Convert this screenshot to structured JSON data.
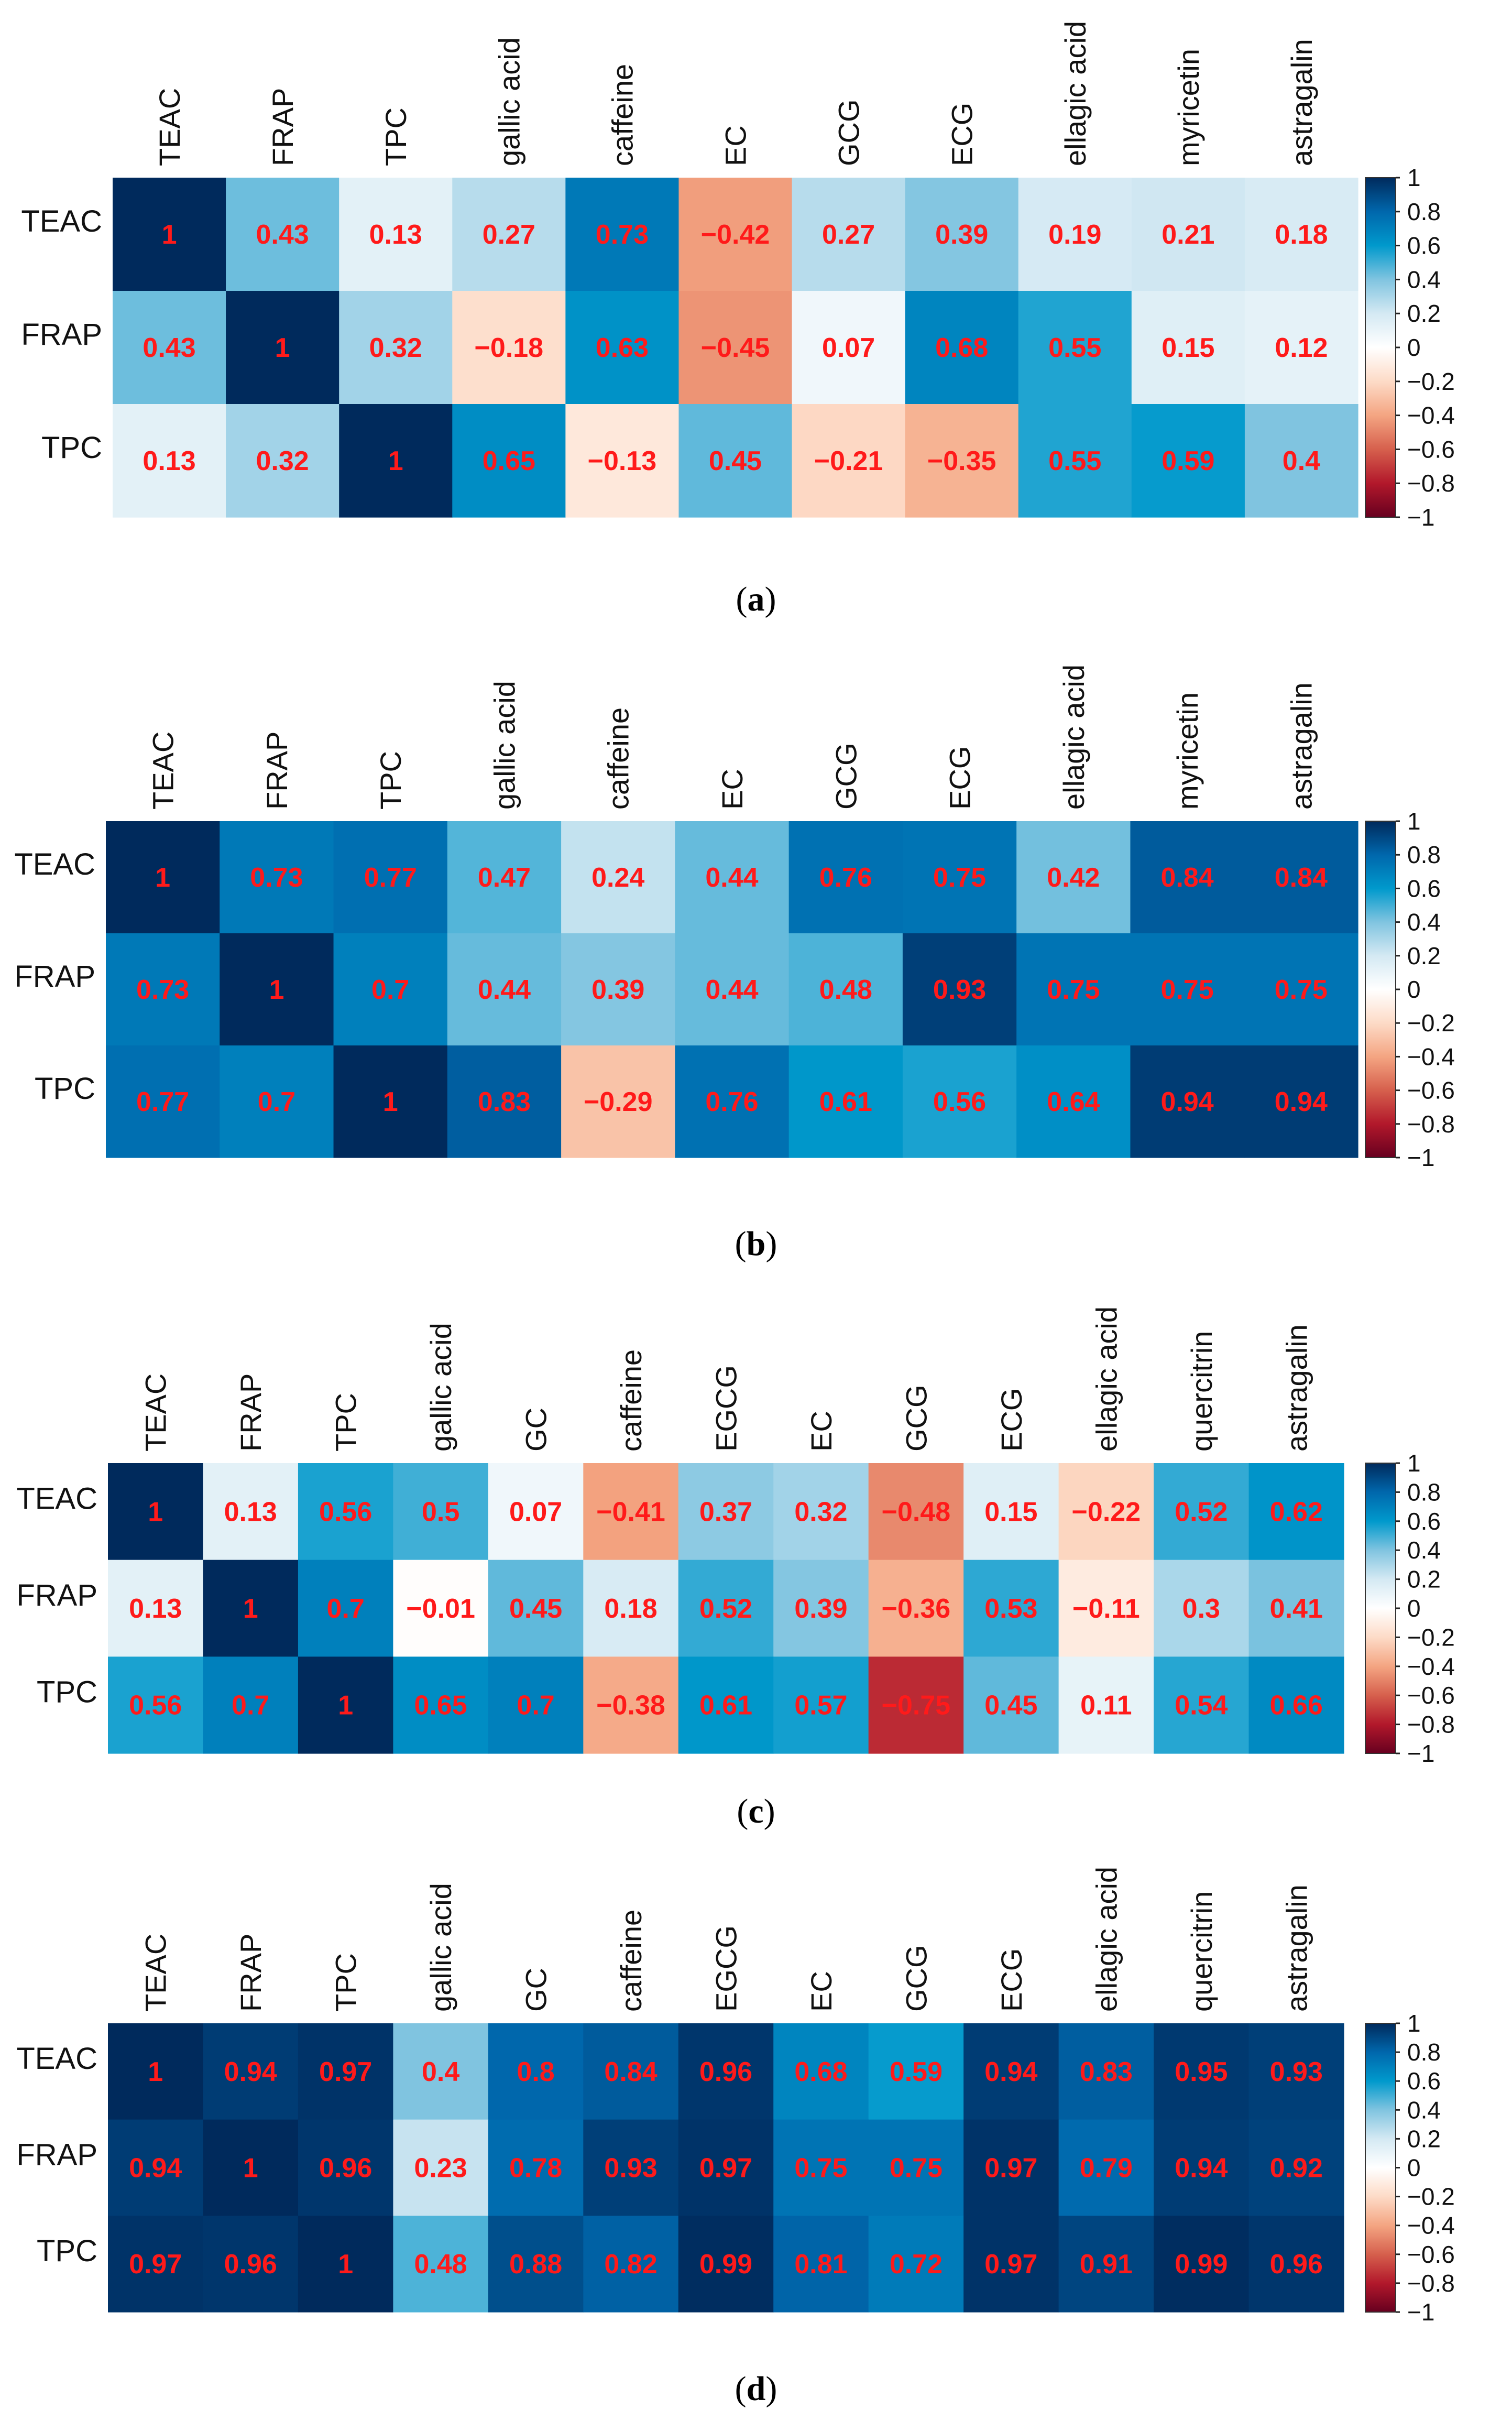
{
  "chart_data": [
    {
      "type": "heatmap",
      "caption_letter": "a",
      "rows": [
        "TEAC",
        "FRAP",
        "TPC"
      ],
      "columns": [
        "TEAC",
        "FRAP",
        "TPC",
        "gallic acid",
        "caffeine",
        "EC",
        "GCG",
        "ECG",
        "ellagic acid",
        "myricetin",
        "astragalin"
      ],
      "values": [
        [
          1,
          0.43,
          0.13,
          0.27,
          0.73,
          -0.42,
          0.27,
          0.39,
          0.19,
          0.21,
          0.18
        ],
        [
          0.43,
          1,
          0.32,
          -0.18,
          0.63,
          -0.45,
          0.07,
          0.68,
          0.55,
          0.15,
          0.12
        ],
        [
          0.13,
          0.32,
          1,
          0.65,
          -0.13,
          0.45,
          -0.21,
          -0.35,
          0.55,
          0.59,
          0.4
        ]
      ],
      "colorbar": {
        "range": [
          -1,
          1
        ],
        "ticks": [
          "1",
          "0.8",
          "0.6",
          "0.4",
          "0.2",
          "0",
          "−0.2",
          "−0.4",
          "−0.6",
          "−0.8",
          "−1"
        ]
      }
    },
    {
      "type": "heatmap",
      "caption_letter": "b",
      "rows": [
        "TEAC",
        "FRAP",
        "TPC"
      ],
      "columns": [
        "TEAC",
        "FRAP",
        "TPC",
        "gallic acid",
        "caffeine",
        "EC",
        "GCG",
        "ECG",
        "ellagic acid",
        "myricetin",
        "astragalin"
      ],
      "values": [
        [
          1,
          0.73,
          0.77,
          0.47,
          0.24,
          0.44,
          0.76,
          0.75,
          0.42,
          0.84,
          0.84
        ],
        [
          0.73,
          1,
          0.7,
          0.44,
          0.39,
          0.44,
          0.48,
          0.93,
          0.75,
          0.75,
          0.75
        ],
        [
          0.77,
          0.7,
          1,
          0.83,
          -0.29,
          0.76,
          0.61,
          0.56,
          0.64,
          0.94,
          0.94
        ]
      ],
      "colorbar": {
        "range": [
          -1,
          1
        ],
        "ticks": [
          "1",
          "0.8",
          "0.6",
          "0.4",
          "0.2",
          "0",
          "−0.2",
          "−0.4",
          "−0.6",
          "−0.8",
          "−1"
        ]
      }
    },
    {
      "type": "heatmap",
      "caption_letter": "c",
      "rows": [
        "TEAC",
        "FRAP",
        "TPC"
      ],
      "columns": [
        "TEAC",
        "FRAP",
        "TPC",
        "gallic acid",
        "GC",
        "caffeine",
        "EGCG",
        "EC",
        "GCG",
        "ECG",
        "ellagic acid",
        "quercitrin",
        "astragalin"
      ],
      "values": [
        [
          1,
          0.13,
          0.56,
          0.5,
          0.07,
          -0.41,
          0.37,
          0.32,
          -0.48,
          0.15,
          -0.22,
          0.52,
          0.62
        ],
        [
          0.13,
          1,
          0.7,
          -0.01,
          0.45,
          0.18,
          0.52,
          0.39,
          -0.36,
          0.53,
          -0.11,
          0.3,
          0.41
        ],
        [
          0.56,
          0.7,
          1,
          0.65,
          0.7,
          -0.38,
          0.61,
          0.57,
          -0.75,
          0.45,
          0.11,
          0.54,
          0.66
        ]
      ],
      "colorbar": {
        "range": [
          -1,
          1
        ],
        "ticks": [
          "1",
          "0.8",
          "0.6",
          "0.4",
          "0.2",
          "0",
          "−0.2",
          "−0.4",
          "−0.6",
          "−0.8",
          "−1"
        ]
      }
    },
    {
      "type": "heatmap",
      "caption_letter": "d",
      "rows": [
        "TEAC",
        "FRAP",
        "TPC"
      ],
      "columns": [
        "TEAC",
        "FRAP",
        "TPC",
        "gallic acid",
        "GC",
        "caffeine",
        "EGCG",
        "EC",
        "GCG",
        "ECG",
        "ellagic acid",
        "quercitrin",
        "astragalin"
      ],
      "values": [
        [
          1,
          0.94,
          0.97,
          0.4,
          0.8,
          0.84,
          0.96,
          0.68,
          0.59,
          0.94,
          0.83,
          0.95,
          0.93
        ],
        [
          0.94,
          1,
          0.96,
          0.23,
          0.78,
          0.93,
          0.97,
          0.75,
          0.75,
          0.97,
          0.79,
          0.94,
          0.92
        ],
        [
          0.97,
          0.96,
          1,
          0.48,
          0.88,
          0.82,
          0.99,
          0.81,
          0.72,
          0.97,
          0.91,
          0.99,
          0.96
        ]
      ],
      "colorbar": {
        "range": [
          -1,
          1
        ],
        "ticks": [
          "1",
          "0.8",
          "0.6",
          "0.4",
          "0.2",
          "0",
          "−0.2",
          "−0.4",
          "−0.6",
          "−0.8",
          "−1"
        ]
      }
    }
  ]
}
